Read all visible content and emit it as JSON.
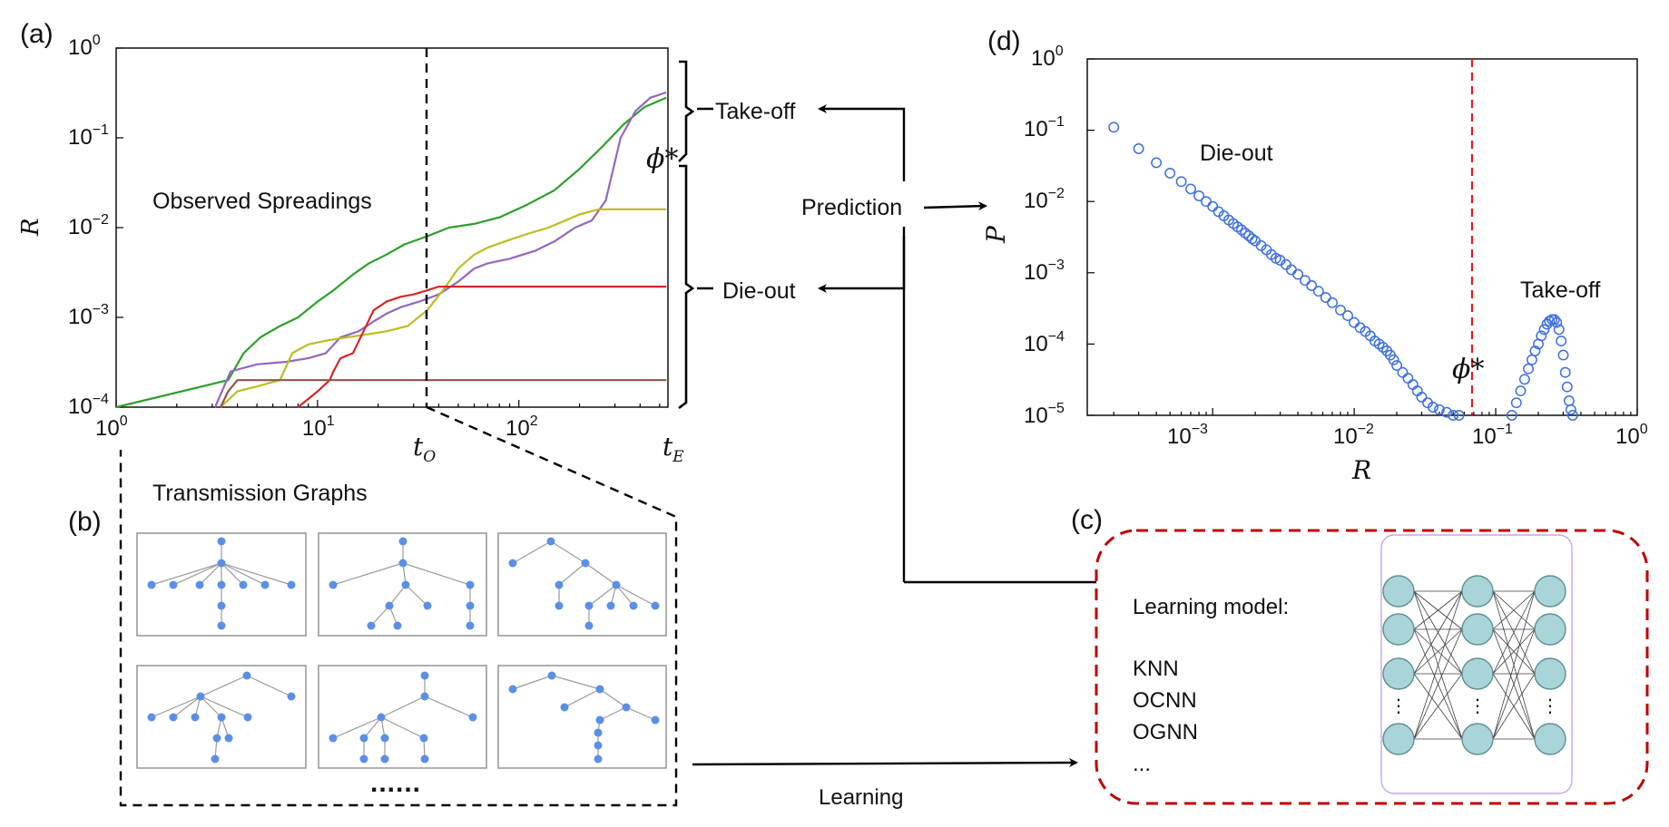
{
  "panels": {
    "a": {
      "label": "(a)",
      "title": "Observed Spreadings",
      "ylabel": "R",
      "y_ticks": [
        "10^0",
        "10^-1",
        "10^-2",
        "10^-3",
        "10^-4"
      ],
      "x_ticks": [
        "10^0",
        "10^1",
        "10^2"
      ],
      "t_observe": "t_O",
      "t_end": "t_E",
      "threshold_label": "ϕ*"
    },
    "b": {
      "label": "(b)",
      "title": "Transmission Graphs",
      "ellipsis": "......"
    },
    "c": {
      "label": "(c)",
      "title": "Learning model:",
      "models": [
        "KNN",
        "OCNN",
        "OGNN",
        "..."
      ]
    },
    "d": {
      "label": "(d)",
      "xlabel": "R",
      "ylabel": "P",
      "y_ticks": [
        "10^0",
        "10^-1",
        "10^-2",
        "10^-3",
        "10^-4",
        "10^-5"
      ],
      "x_ticks": [
        "10^-3",
        "10^-2",
        "10^-1",
        "10^0"
      ],
      "die_out": "Die-out",
      "take_off": "Take-off",
      "threshold_label": "ϕ*"
    }
  },
  "flow": {
    "take_off": "Take-off",
    "die_out": "Die-out",
    "prediction": "Prediction",
    "learning": "Learning"
  },
  "colors": {
    "green": "#2ca02c",
    "purple": "#9467bd",
    "olive": "#bcbd22",
    "red": "#d62728",
    "brown": "#8c564b",
    "scatter": "#3d6fe0",
    "threshold": "#e31a1c",
    "box_c": "#c00000"
  },
  "chart_data": [
    {
      "type": "line",
      "title": "Observed Spreadings",
      "xlabel": "",
      "ylabel": "R",
      "xscale": "log",
      "yscale": "log",
      "xlim": [
        1,
        550
      ],
      "ylim": [
        0.0001,
        1
      ],
      "t_O": 30,
      "series": [
        {
          "name": "green",
          "color": "#2ca02c",
          "x": [
            1,
            3.6,
            4.3,
            5.2,
            6.5,
            8,
            10,
            12,
            15,
            18,
            22,
            27,
            35,
            45,
            60,
            80,
            110,
            150,
            200,
            260,
            330,
            420,
            540
          ],
          "y": [
            0.0001,
            0.0002,
            0.0004,
            0.0006,
            0.0008,
            0.001,
            0.0015,
            0.002,
            0.003,
            0.004,
            0.005,
            0.0065,
            0.008,
            0.01,
            0.011,
            0.013,
            0.018,
            0.026,
            0.045,
            0.08,
            0.14,
            0.22,
            0.28
          ]
        },
        {
          "name": "purple",
          "color": "#9467bd",
          "x": [
            3.1,
            3.7,
            5,
            7,
            9,
            11,
            13,
            16,
            19,
            22,
            26,
            32,
            40,
            50,
            60,
            70,
            90,
            120,
            150,
            190,
            230,
            270,
            320,
            380,
            450,
            540
          ],
          "y": [
            0.0001,
            0.00025,
            0.0003,
            0.00032,
            0.00035,
            0.0004,
            0.0006,
            0.0007,
            0.0009,
            0.0011,
            0.0013,
            0.0015,
            0.0018,
            0.0025,
            0.0035,
            0.004,
            0.0045,
            0.0055,
            0.007,
            0.01,
            0.012,
            0.02,
            0.1,
            0.2,
            0.28,
            0.32
          ]
        },
        {
          "name": "olive",
          "color": "#bcbd22",
          "x": [
            3.3,
            4,
            5,
            6.5,
            7.5,
            9,
            11,
            14,
            18,
            22,
            28,
            35,
            42,
            50,
            60,
            70,
            85,
            110,
            140,
            170,
            200,
            250,
            300,
            400,
            540
          ],
          "y": [
            0.0001,
            0.00015,
            0.00017,
            0.0002,
            0.0004,
            0.0005,
            0.00055,
            0.0006,
            0.00065,
            0.0007,
            0.0008,
            0.0012,
            0.002,
            0.0035,
            0.005,
            0.006,
            0.007,
            0.0085,
            0.01,
            0.012,
            0.014,
            0.016,
            0.016,
            0.016,
            0.016
          ]
        },
        {
          "name": "red",
          "color": "#d62728",
          "x": [
            8,
            10,
            11.5,
            12,
            13,
            15,
            19,
            22,
            26,
            30,
            35,
            40,
            50,
            60,
            80,
            120,
            200,
            540
          ],
          "y": [
            0.0001,
            0.00015,
            0.0002,
            0.00025,
            0.00035,
            0.0004,
            0.0012,
            0.0015,
            0.0017,
            0.0018,
            0.002,
            0.0022,
            0.0022,
            0.0022,
            0.0022,
            0.0022,
            0.0022,
            0.0022
          ]
        },
        {
          "name": "brown",
          "color": "#8c564b",
          "x": [
            3.3,
            3.6,
            4,
            10,
            30,
            100,
            540
          ],
          "y": [
            0.0001,
            0.00015,
            0.0002,
            0.0002,
            0.0002,
            0.0002,
            0.0002
          ]
        }
      ]
    },
    {
      "type": "scatter",
      "title": "",
      "xlabel": "R",
      "ylabel": "P",
      "xscale": "log",
      "yscale": "log",
      "xlim": [
        0.00013,
        1
      ],
      "ylim": [
        1e-05,
        1
      ],
      "threshold_x": 0.065,
      "series": [
        {
          "name": "Die-out",
          "x": [
            0.0002,
            0.0003,
            0.0004,
            0.0005,
            0.0006,
            0.0007,
            0.0008,
            0.0009,
            0.001,
            0.0011,
            0.0012,
            0.0013,
            0.0014,
            0.0015,
            0.0016,
            0.0017,
            0.0018,
            0.0019,
            0.002,
            0.0022,
            0.0024,
            0.0026,
            0.0028,
            0.003,
            0.0033,
            0.0036,
            0.004,
            0.0045,
            0.005,
            0.0056,
            0.0063,
            0.007,
            0.008,
            0.009,
            0.01,
            0.011,
            0.012,
            0.013,
            0.014,
            0.015,
            0.016,
            0.017,
            0.018,
            0.019,
            0.02,
            0.022,
            0.024,
            0.026,
            0.028,
            0.03,
            0.033,
            0.036,
            0.04,
            0.045,
            0.05,
            0.055
          ],
          "y": [
            0.11,
            0.055,
            0.035,
            0.025,
            0.019,
            0.015,
            0.012,
            0.01,
            0.0085,
            0.0072,
            0.0063,
            0.0055,
            0.0049,
            0.0044,
            0.004,
            0.0036,
            0.0033,
            0.003,
            0.0028,
            0.0024,
            0.0021,
            0.0018,
            0.0016,
            0.0015,
            0.0013,
            0.0011,
            0.00095,
            0.00078,
            0.00066,
            0.00055,
            0.00045,
            0.00038,
            0.0003,
            0.00025,
            0.0002,
            0.00017,
            0.00015,
            0.00013,
            0.00011,
            0.0001,
            9e-05,
            8e-05,
            7e-05,
            6e-05,
            5e-05,
            4e-05,
            3.3e-05,
            2.7e-05,
            2.2e-05,
            1.8e-05,
            1.5e-05,
            1.3e-05,
            1.2e-05,
            1.1e-05,
            1e-05,
            1e-05
          ]
        },
        {
          "name": "Take-off",
          "x": [
            0.13,
            0.14,
            0.15,
            0.16,
            0.17,
            0.18,
            0.19,
            0.2,
            0.21,
            0.22,
            0.23,
            0.24,
            0.25,
            0.26,
            0.27,
            0.28,
            0.29,
            0.3,
            0.31,
            0.32,
            0.33,
            0.34,
            0.35
          ],
          "y": [
            1e-05,
            1.5e-05,
            2.2e-05,
            3.2e-05,
            4.5e-05,
            6e-05,
            8e-05,
            0.0001,
            0.00013,
            0.00016,
            0.00019,
            0.00021,
            0.00022,
            0.00022,
            0.0002,
            0.00016,
            0.00011,
            7e-05,
            4e-05,
            2.5e-05,
            1.6e-05,
            1.2e-05,
            1e-05
          ]
        }
      ]
    }
  ]
}
